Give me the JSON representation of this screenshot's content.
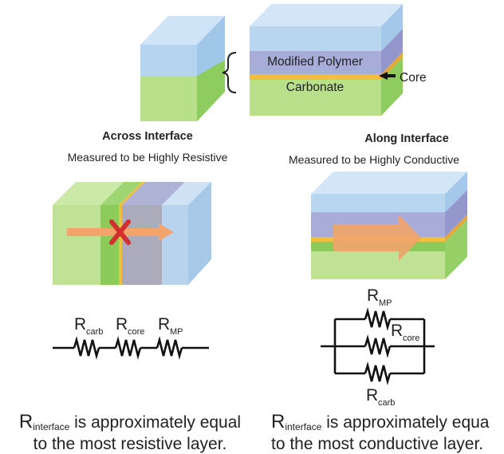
{
  "top": {
    "label_mp": "Modified Polymer",
    "label_carb": "Carbonate",
    "label_core": "Core"
  },
  "left": {
    "heading": "Across Interface",
    "subheading": "Measured to be Highly Resistive",
    "r1": {
      "main": "R",
      "sub": "carb"
    },
    "r2": {
      "main": "R",
      "sub": "core"
    },
    "r3": {
      "main": "R",
      "sub": "MP"
    },
    "conclusion": {
      "main": "R",
      "sub": "interface",
      "rest": " is approximately equal",
      "line2": "to the most resistive layer."
    }
  },
  "right": {
    "heading": "Along Interface",
    "subheading": "Measured to be Highly Conductive",
    "r1": {
      "main": "R",
      "sub": "MP"
    },
    "r2": {
      "main": "R",
      "sub": "core"
    },
    "r3": {
      "main": "R",
      "sub": "carb"
    },
    "conclusion": {
      "main": "R",
      "sub": "interface",
      "rest": " is approximately equa",
      "line2": "to the most conductive layer."
    }
  },
  "colors": {
    "green": "#b7df88",
    "green_dark": "#7fc650",
    "blue": "#a9cdec",
    "purple": "#9aa1d8",
    "core": "#f0b73a",
    "arrow": "#f2a46a",
    "cross": "#d32f2f"
  }
}
